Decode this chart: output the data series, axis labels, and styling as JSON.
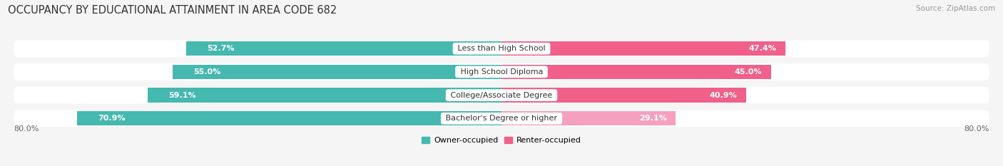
{
  "title": "OCCUPANCY BY EDUCATIONAL ATTAINMENT IN AREA CODE 682",
  "source": "Source: ZipAtlas.com",
  "categories": [
    "Less than High School",
    "High School Diploma",
    "College/Associate Degree",
    "Bachelor's Degree or higher"
  ],
  "owner_pct": [
    52.7,
    55.0,
    59.1,
    70.9
  ],
  "renter_pct": [
    47.4,
    45.0,
    40.9,
    29.1
  ],
  "owner_color": "#45B8B0",
  "renter_colors": [
    "#F0608A",
    "#F0608A",
    "#F0608A",
    "#F5A0BE"
  ],
  "axis_left_label": "80.0%",
  "axis_right_label": "80.0%",
  "legend_owner": "Owner-occupied",
  "legend_renter": "Renter-occupied",
  "legend_owner_color": "#45B8B0",
  "legend_renter_color": "#F0608A",
  "bar_height": 0.62,
  "row_bg_color": "#e8e8e8",
  "background_color": "#f5f5f5",
  "title_fontsize": 10.5,
  "source_fontsize": 7.5,
  "label_fontsize": 8,
  "value_fontsize": 8
}
